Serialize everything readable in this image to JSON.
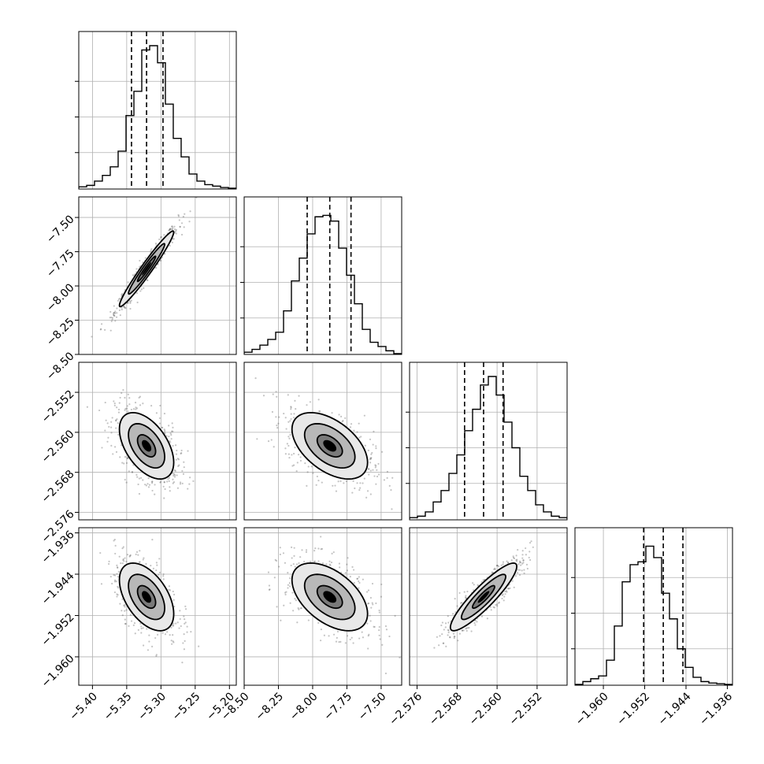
{
  "chart_data": {
    "type": "corner",
    "description_free": true,
    "parameters": [
      {
        "range": [
          -5.42,
          -5.19
        ],
        "ticks": [
          -5.4,
          -5.35,
          -5.3,
          -5.25,
          -5.2
        ],
        "tick_labels": [
          "−5.40",
          "−5.35",
          "−5.30",
          "−5.25",
          "−5.20"
        ],
        "quantiles": [
          -5.343,
          -5.321,
          -5.297
        ],
        "histogram": [
          0.01,
          0.02,
          0.05,
          0.09,
          0.15,
          0.26,
          0.51,
          0.68,
          0.97,
          1.0,
          0.88,
          0.59,
          0.35,
          0.22,
          0.1,
          0.05,
          0.025,
          0.015,
          0.005,
          0.0
        ]
      },
      {
        "range": [
          -8.5,
          -7.35
        ],
        "ticks": [
          -8.5,
          -8.25,
          -8.0,
          -7.75,
          -7.5
        ],
        "tick_labels": [
          "−8.50",
          "−8.25",
          "−8.00",
          "−7.75",
          "−7.50"
        ],
        "quantiles": [
          -8.04,
          -7.875,
          -7.72
        ],
        "histogram": [
          0.01,
          0.03,
          0.06,
          0.1,
          0.15,
          0.3,
          0.51,
          0.67,
          0.84,
          0.96,
          0.97,
          0.93,
          0.74,
          0.55,
          0.35,
          0.17,
          0.08,
          0.05,
          0.02,
          0.0
        ]
      },
      {
        "range": [
          -2.5775,
          -2.546
        ],
        "ticks": [
          -2.576,
          -2.568,
          -2.56,
          -2.552
        ],
        "tick_labels": [
          "−2.576",
          "−2.568",
          "−2.560",
          "−2.552"
        ],
        "quantiles": [
          -2.5665,
          -2.5627,
          -2.5588
        ],
        "histogram": [
          0.01,
          0.02,
          0.05,
          0.12,
          0.2,
          0.32,
          0.45,
          0.62,
          0.77,
          0.94,
          1.0,
          0.87,
          0.68,
          0.5,
          0.3,
          0.2,
          0.1,
          0.05,
          0.02,
          0.01
        ]
      },
      {
        "range": [
          -1.9655,
          -1.935
        ],
        "ticks": [
          -1.96,
          -1.952,
          -1.944,
          -1.936
        ],
        "tick_labels": [
          "−1.960",
          "−1.952",
          "−1.944",
          "−1.936"
        ],
        "quantiles": [
          -1.9522,
          -1.9484,
          -1.9446
        ],
        "histogram": [
          0.0,
          0.02,
          0.04,
          0.06,
          0.17,
          0.41,
          0.72,
          0.84,
          0.86,
          0.97,
          0.89,
          0.64,
          0.46,
          0.25,
          0.12,
          0.05,
          0.02,
          0.01,
          0.005,
          0.0
        ]
      }
    ],
    "correlations": [
      [
        1.0,
        0.97,
        -0.5,
        -0.5
      ],
      [
        0.97,
        1.0,
        -0.5,
        -0.5
      ],
      [
        -0.5,
        -0.5,
        1.0,
        0.9
      ],
      [
        -0.5,
        -0.5,
        0.9,
        1.0
      ]
    ],
    "contour_levels": [
      0.5,
      1.0,
      1.5
    ],
    "grid": true,
    "xlabel": "",
    "ylabel": "",
    "title": ""
  }
}
